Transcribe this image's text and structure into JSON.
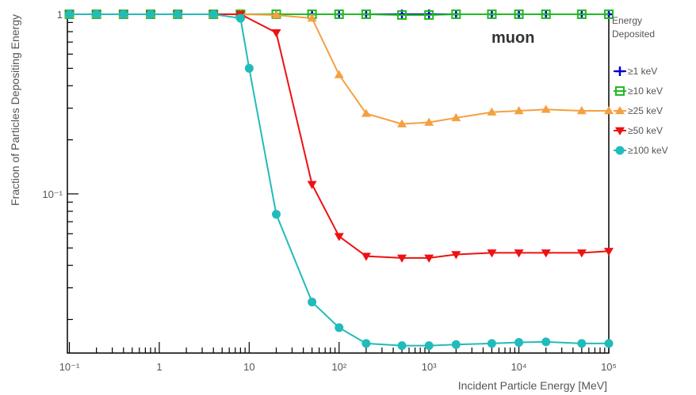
{
  "chart_data": {
    "type": "line",
    "annotation": "muon",
    "xlabel": "Incident Particle Energy [MeV]",
    "ylabel": "Fraction of Particles Depositing Energy",
    "xscale": "log",
    "yscale": "log",
    "xlim": [
      0.095,
      100000
    ],
    "ylim": [
      0.013,
      1.0
    ],
    "x_tick_labels": [
      "10⁻¹",
      "1",
      "10",
      "10²",
      "10³",
      "10⁴",
      "10⁵"
    ],
    "y_tick_labels": [
      "10⁻¹",
      "1"
    ],
    "grid": false,
    "legend_title": [
      "Energy",
      "Deposited"
    ],
    "legend_position": "right, outside plot area",
    "series": [
      {
        "name": "≥1 keV",
        "color": "#0000cc",
        "marker": "plus",
        "x": [
          0.1,
          0.2,
          0.4,
          0.8,
          1.6,
          4,
          8,
          20,
          50,
          100,
          200,
          500,
          1000,
          2000,
          5000,
          10000,
          20000,
          50000,
          100000
        ],
        "y": [
          1,
          1,
          1,
          1,
          1,
          1,
          1,
          1,
          1,
          1,
          1,
          1,
          1,
          1,
          1,
          1,
          1,
          1,
          1
        ]
      },
      {
        "name": "≥10 keV",
        "color": "#22bb22",
        "marker": "open-square",
        "x": [
          0.1,
          0.2,
          0.4,
          0.8,
          1.6,
          4,
          8,
          20,
          50,
          100,
          200,
          500,
          1000,
          2000,
          5000,
          10000,
          20000,
          50000,
          100000
        ],
        "y": [
          1,
          1,
          1,
          1,
          1,
          1,
          1,
          1,
          1,
          1,
          1,
          0.99,
          0.99,
          1,
          1,
          1,
          1,
          1,
          1
        ]
      },
      {
        "name": "≥25 keV",
        "color": "#f5a040",
        "marker": "triangle-up",
        "x": [
          0.1,
          0.2,
          0.4,
          0.8,
          1.6,
          4,
          8,
          20,
          50,
          100,
          200,
          500,
          1000,
          2000,
          5000,
          10000,
          20000,
          50000,
          100000
        ],
        "y": [
          1,
          1,
          1,
          1,
          1,
          1,
          1,
          0.99,
          0.95,
          0.46,
          0.28,
          0.245,
          0.25,
          0.265,
          0.285,
          0.29,
          0.295,
          0.29,
          0.29
        ]
      },
      {
        "name": "≥50 keV",
        "color": "#ee1111",
        "marker": "triangle-down",
        "x": [
          0.1,
          0.2,
          0.4,
          0.8,
          1.6,
          4,
          8,
          20,
          50,
          100,
          200,
          500,
          1000,
          2000,
          5000,
          10000,
          20000,
          50000,
          100000
        ],
        "y": [
          1,
          1,
          1,
          1,
          1,
          1,
          1,
          0.79,
          0.113,
          0.058,
          0.045,
          0.044,
          0.044,
          0.046,
          0.047,
          0.047,
          0.047,
          0.047,
          0.048
        ]
      },
      {
        "name": "≥100 keV",
        "color": "#22bbbb",
        "marker": "circle",
        "x": [
          0.1,
          0.2,
          0.4,
          0.8,
          1.6,
          4,
          8,
          10,
          20,
          50,
          100,
          200,
          500,
          1000,
          2000,
          5000,
          10000,
          20000,
          50000,
          100000
        ],
        "y": [
          1,
          1,
          1,
          1,
          1,
          1,
          0.95,
          0.5,
          0.077,
          0.025,
          0.018,
          0.0147,
          0.0143,
          0.0143,
          0.0145,
          0.0147,
          0.0149,
          0.015,
          0.0147,
          0.0147
        ]
      }
    ]
  }
}
